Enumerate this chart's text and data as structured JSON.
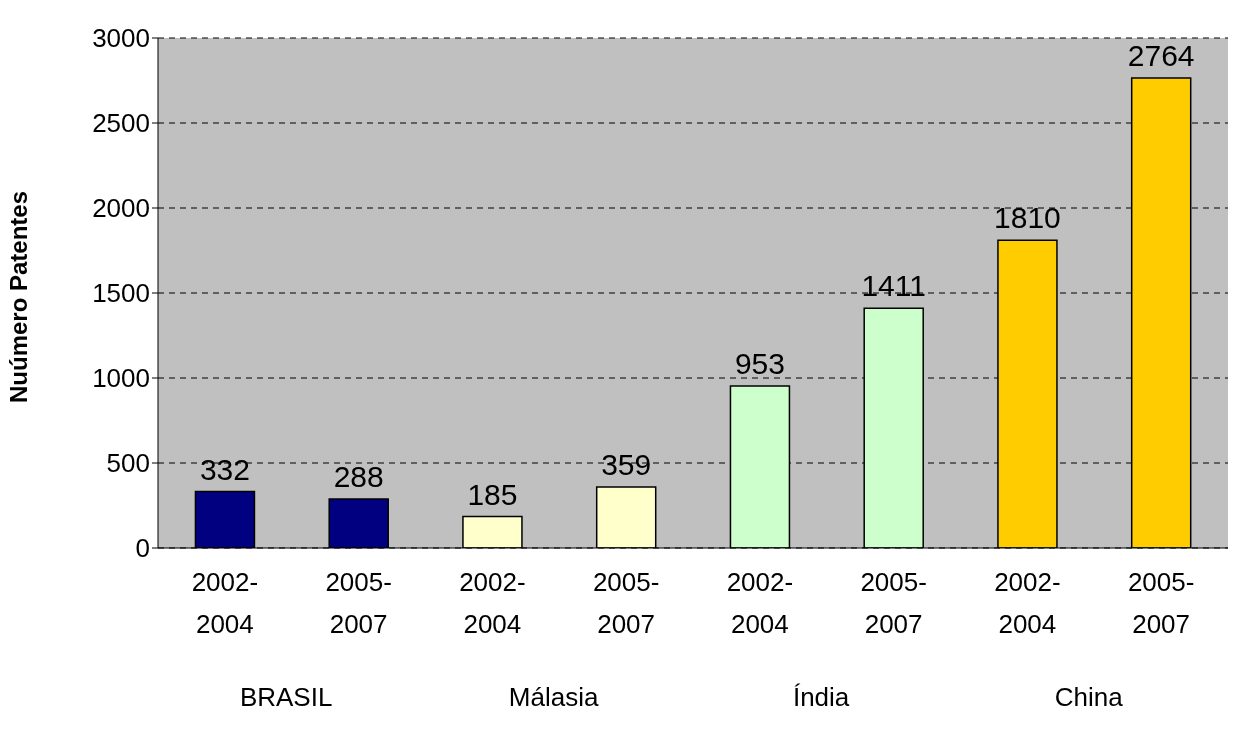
{
  "chart_data": {
    "type": "bar",
    "ylabel": "Nuúmero Patentes",
    "categories": [
      "2002-2004",
      "2005-2007",
      "2002-2004",
      "2005-2007",
      "2002-2004",
      "2005-2007",
      "2002-2004",
      "2005-2007"
    ],
    "values": [
      332,
      288,
      185,
      359,
      953,
      1411,
      1810,
      2764
    ],
    "colors": [
      "#000080",
      "#000080",
      "#ffffcc",
      "#ffffcc",
      "#ccffcc",
      "#ccffcc",
      "#ffcc00",
      "#ffcc00"
    ],
    "annotations": [
      "BRASIL",
      "Málasia",
      "Índia",
      "China"
    ],
    "ylim": [
      0,
      3000
    ],
    "yticks": [
      0,
      500,
      1000,
      1500,
      2000,
      2500,
      3000
    ],
    "grid": "y",
    "data_labels": true
  }
}
